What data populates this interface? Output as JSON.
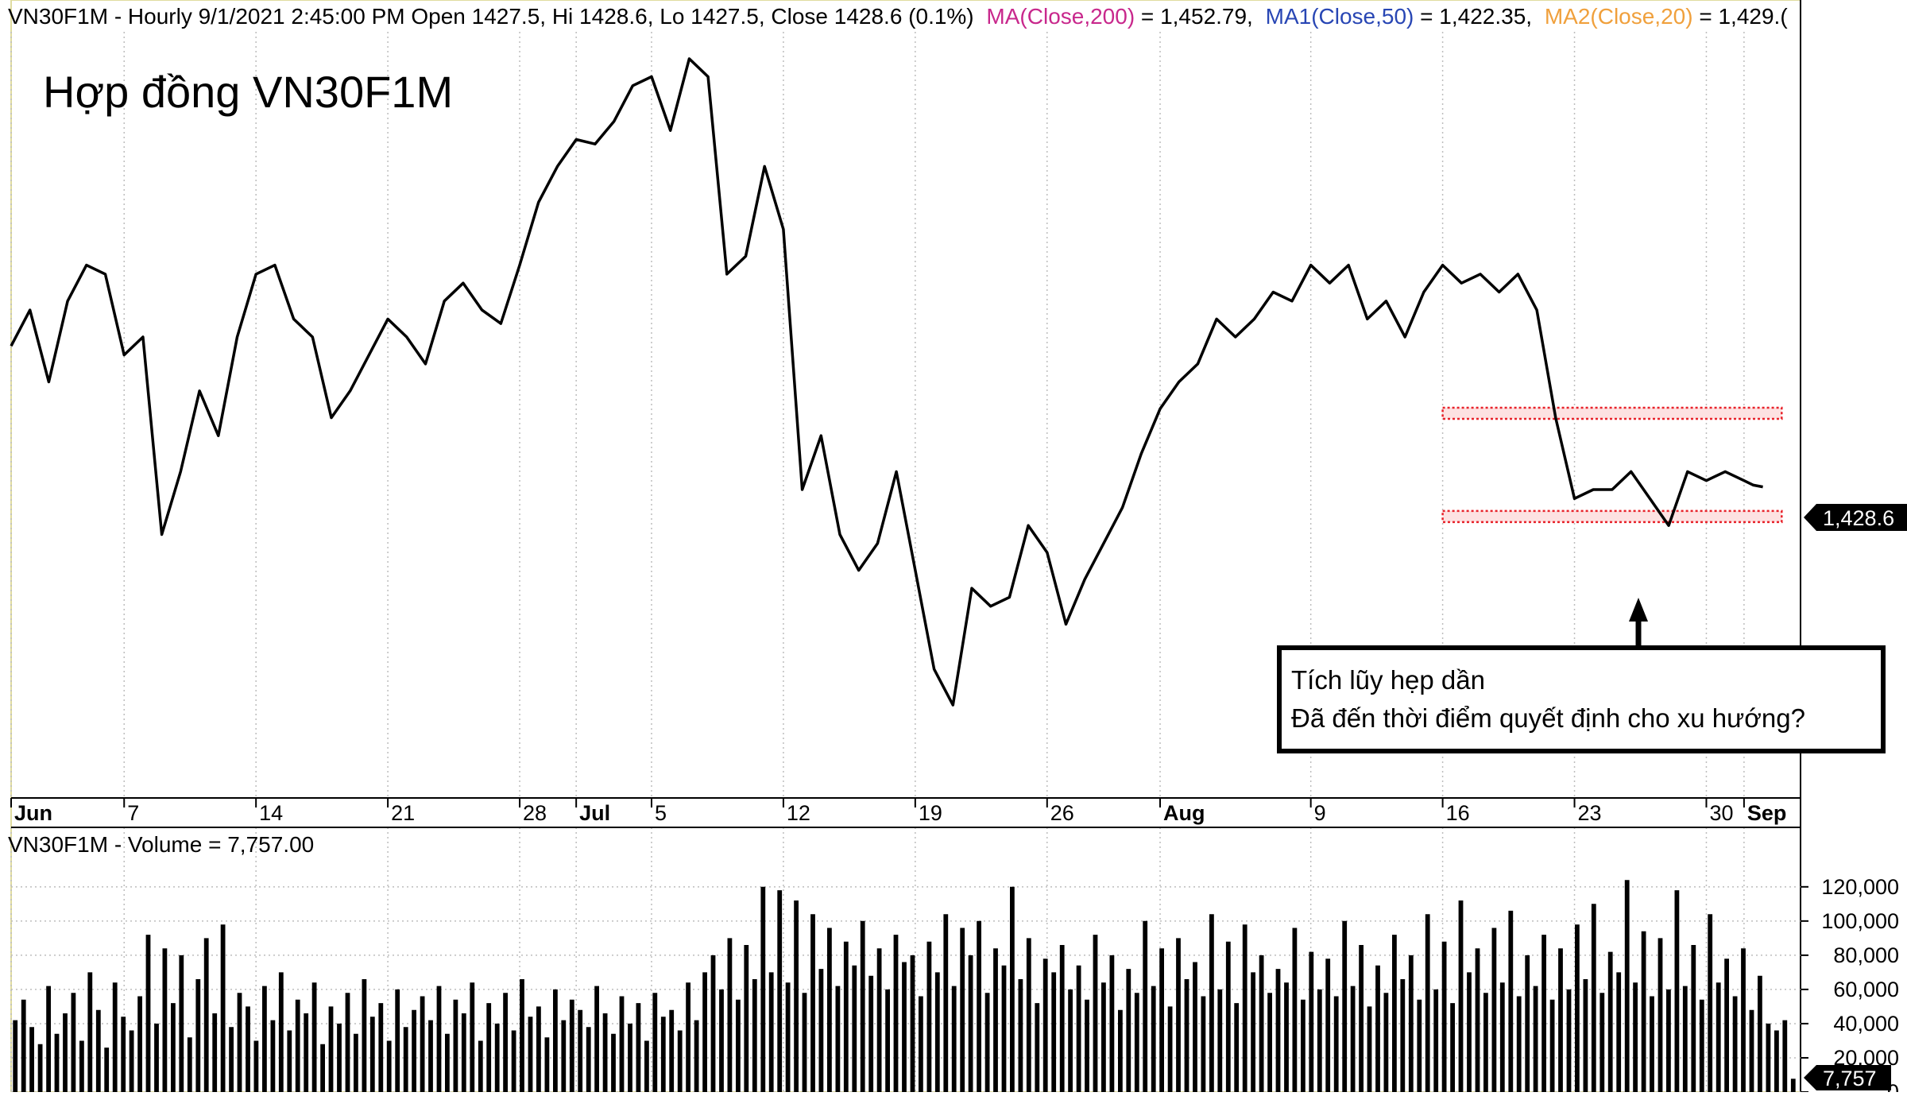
{
  "header": {
    "symbol_info": "VN30F1M - Hourly 9/1/2021 2:45:00 PM Open 1427.5, Hi 1428.6, Lo 1427.5, Close 1428.6 (0.1%)",
    "ma_label": "MA(Close,200)",
    "ma_value": " = 1,452.79,",
    "ma1_label": "MA1(Close,50)",
    "ma1_value": " = 1,422.35,",
    "ma2_label": "MA2(Close,20)",
    "ma2_value": " = 1,429.("
  },
  "colors": {
    "ma": "#c8288c",
    "ma1": "#2846b4",
    "ma2": "#f0a03c",
    "price_line": "#000000",
    "zone": "#e8222a",
    "grid": "#bdbdbd"
  },
  "chart_title": "Hợp đồng VN30F1M",
  "annotation": {
    "line1": "Tích lũy hẹp dần",
    "line2": "Đã đến thời điểm quyết định cho xu hướng?"
  },
  "price_badge": "1,428.6",
  "volume_header": "VN30F1M - Volume = 7,757.00",
  "volume_badge": "7,757",
  "chart_data": [
    {
      "type": "line",
      "title": "VN30F1M - Hourly",
      "x_ticks": [
        {
          "label": "Jun",
          "bold": true,
          "day": 0
        },
        {
          "label": "7",
          "bold": false,
          "day": 6
        },
        {
          "label": "14",
          "bold": false,
          "day": 13
        },
        {
          "label": "21",
          "bold": false,
          "day": 20
        },
        {
          "label": "28",
          "bold": false,
          "day": 27
        },
        {
          "label": "Jul",
          "bold": true,
          "day": 30
        },
        {
          "label": "5",
          "bold": false,
          "day": 34
        },
        {
          "label": "12",
          "bold": false,
          "day": 41
        },
        {
          "label": "19",
          "bold": false,
          "day": 48
        },
        {
          "label": "26",
          "bold": false,
          "day": 55
        },
        {
          "label": "Aug",
          "bold": true,
          "day": 61
        },
        {
          "label": "9",
          "bold": false,
          "day": 69
        },
        {
          "label": "16",
          "bold": false,
          "day": 76
        },
        {
          "label": "23",
          "bold": false,
          "day": 83
        },
        {
          "label": "30",
          "bold": false,
          "day": 90
        },
        {
          "label": "Sep",
          "bold": true,
          "day": 92
        }
      ],
      "x_range_days": [
        0,
        95
      ],
      "ylim": [
        1360,
        1530
      ],
      "last_close": 1428.6,
      "consolidation_zone": {
        "upper": 1445,
        "lower": 1422,
        "start_day": 76,
        "end_day": 94
      },
      "points": [
        [
          0,
          1460
        ],
        [
          1,
          1468
        ],
        [
          2,
          1452
        ],
        [
          3,
          1470
        ],
        [
          4,
          1478
        ],
        [
          5,
          1476
        ],
        [
          6,
          1458
        ],
        [
          7,
          1462
        ],
        [
          8,
          1418
        ],
        [
          9,
          1432
        ],
        [
          10,
          1450
        ],
        [
          11,
          1440
        ],
        [
          12,
          1462
        ],
        [
          13,
          1476
        ],
        [
          14,
          1478
        ],
        [
          15,
          1466
        ],
        [
          16,
          1462
        ],
        [
          17,
          1444
        ],
        [
          18,
          1450
        ],
        [
          19,
          1458
        ],
        [
          20,
          1466
        ],
        [
          21,
          1462
        ],
        [
          22,
          1456
        ],
        [
          23,
          1470
        ],
        [
          24,
          1474
        ],
        [
          25,
          1468
        ],
        [
          26,
          1465
        ],
        [
          27,
          1478
        ],
        [
          28,
          1492
        ],
        [
          29,
          1500
        ],
        [
          30,
          1506
        ],
        [
          31,
          1505
        ],
        [
          32,
          1510
        ],
        [
          33,
          1518
        ],
        [
          34,
          1520
        ],
        [
          35,
          1508
        ],
        [
          36,
          1524
        ],
        [
          37,
          1520
        ],
        [
          38,
          1476
        ],
        [
          39,
          1480
        ],
        [
          40,
          1500
        ],
        [
          41,
          1486
        ],
        [
          42,
          1428
        ],
        [
          43,
          1440
        ],
        [
          44,
          1418
        ],
        [
          45,
          1410
        ],
        [
          46,
          1416
        ],
        [
          47,
          1432
        ],
        [
          48,
          1410
        ],
        [
          49,
          1388
        ],
        [
          50,
          1380
        ],
        [
          51,
          1406
        ],
        [
          52,
          1402
        ],
        [
          53,
          1404
        ],
        [
          54,
          1420
        ],
        [
          55,
          1414
        ],
        [
          56,
          1398
        ],
        [
          57,
          1408
        ],
        [
          58,
          1416
        ],
        [
          59,
          1424
        ],
        [
          60,
          1436
        ],
        [
          61,
          1446
        ],
        [
          62,
          1452
        ],
        [
          63,
          1456
        ],
        [
          64,
          1466
        ],
        [
          65,
          1462
        ],
        [
          66,
          1466
        ],
        [
          67,
          1472
        ],
        [
          68,
          1470
        ],
        [
          69,
          1478
        ],
        [
          70,
          1474
        ],
        [
          71,
          1478
        ],
        [
          72,
          1466
        ],
        [
          73,
          1470
        ],
        [
          74,
          1462
        ],
        [
          75,
          1472
        ],
        [
          76,
          1478
        ],
        [
          77,
          1474
        ],
        [
          78,
          1476
        ],
        [
          79,
          1472
        ],
        [
          80,
          1476
        ],
        [
          81,
          1468
        ],
        [
          82,
          1444
        ],
        [
          83,
          1426
        ],
        [
          84,
          1428
        ],
        [
          85,
          1428
        ],
        [
          86,
          1432
        ],
        [
          87,
          1426
        ],
        [
          88,
          1420
        ],
        [
          89,
          1432
        ],
        [
          90,
          1430
        ],
        [
          91,
          1432
        ],
        [
          92,
          1430
        ],
        [
          92.5,
          1429
        ],
        [
          93,
          1428.6
        ]
      ]
    },
    {
      "type": "bar",
      "title": "VN30F1M - Volume",
      "y_ticks": [
        0,
        20000,
        40000,
        60000,
        80000,
        100000,
        120000
      ],
      "ylim": [
        0,
        132000
      ],
      "last_value": 7757,
      "values": [
        42000,
        54000,
        38000,
        28000,
        62000,
        34000,
        46000,
        58000,
        30000,
        70000,
        48000,
        26000,
        64000,
        44000,
        36000,
        56000,
        92000,
        40000,
        84000,
        52000,
        80000,
        32000,
        66000,
        90000,
        46000,
        98000,
        38000,
        58000,
        50000,
        30000,
        62000,
        42000,
        70000,
        36000,
        54000,
        46000,
        64000,
        28000,
        50000,
        40000,
        58000,
        34000,
        66000,
        44000,
        52000,
        30000,
        60000,
        38000,
        48000,
        56000,
        42000,
        62000,
        34000,
        54000,
        46000,
        64000,
        30000,
        52000,
        40000,
        58000,
        36000,
        66000,
        44000,
        50000,
        32000,
        60000,
        42000,
        54000,
        48000,
        38000,
        62000,
        46000,
        34000,
        56000,
        40000,
        52000,
        30000,
        58000,
        44000,
        48000,
        36000,
        64000,
        42000,
        70000,
        80000,
        60000,
        90000,
        54000,
        86000,
        66000,
        120000,
        70000,
        118000,
        64000,
        112000,
        58000,
        104000,
        72000,
        96000,
        62000,
        88000,
        74000,
        100000,
        68000,
        84000,
        60000,
        92000,
        76000,
        80000,
        56000,
        88000,
        70000,
        104000,
        62000,
        96000,
        80000,
        100000,
        58000,
        84000,
        74000,
        120000,
        66000,
        90000,
        52000,
        78000,
        70000,
        86000,
        60000,
        74000,
        54000,
        92000,
        64000,
        80000,
        48000,
        72000,
        58000,
        100000,
        62000,
        84000,
        50000,
        90000,
        66000,
        76000,
        56000,
        104000,
        60000,
        88000,
        52000,
        98000,
        70000,
        80000,
        58000,
        72000,
        64000,
        96000,
        54000,
        82000,
        60000,
        78000,
        56000,
        100000,
        62000,
        86000,
        50000,
        74000,
        58000,
        92000,
        66000,
        80000,
        54000,
        104000,
        60000,
        88000,
        52000,
        112000,
        70000,
        84000,
        58000,
        96000,
        64000,
        106000,
        56000,
        80000,
        62000,
        92000,
        54000,
        84000,
        60000,
        98000,
        66000,
        110000,
        58000,
        82000,
        70000,
        124000,
        64000,
        94000,
        56000,
        90000,
        60000,
        118000,
        62000,
        86000,
        54000,
        104000,
        64000,
        78000,
        56000,
        84000,
        48000,
        68000,
        40000,
        36000,
        42000,
        7757
      ]
    }
  ]
}
